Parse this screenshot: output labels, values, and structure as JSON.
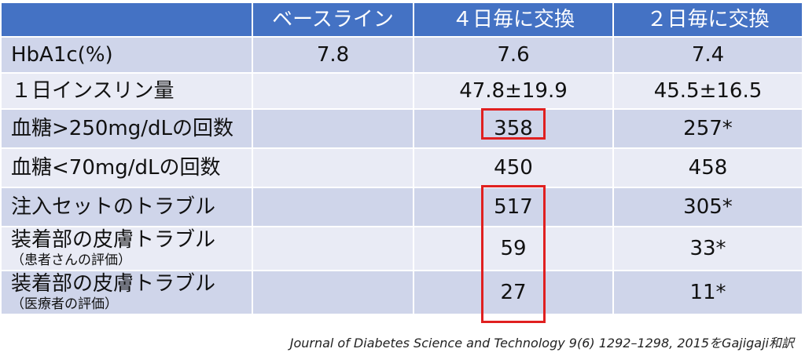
{
  "table": {
    "header": [
      "",
      "ベースライン",
      "４日毎に交換",
      "２日毎に交換"
    ],
    "rows": [
      {
        "label": "HbA1c(%)",
        "sub": "",
        "cells": [
          "7.8",
          "7.6",
          "7.4"
        ]
      },
      {
        "label": "１日インスリン量",
        "sub": "",
        "cells": [
          "",
          "47.8±19.9",
          "45.5±16.5"
        ]
      },
      {
        "label": "血糖>250mg/dLの回数",
        "sub": "",
        "cells": [
          "",
          "358",
          "257*"
        ]
      },
      {
        "label": "血糖<70mg/dLの回数",
        "sub": "",
        "cells": [
          "",
          "450",
          "458"
        ]
      },
      {
        "label": "注入セットのトラブル",
        "sub": "",
        "cells": [
          "",
          "517",
          "305*"
        ]
      },
      {
        "label": "装着部の皮膚トラブル",
        "sub": "（患者さんの評価）",
        "cells": [
          "",
          "59",
          "33*"
        ]
      },
      {
        "label": "装着部の皮膚トラブル",
        "sub": "（医療者の評価）",
        "cells": [
          "",
          "27",
          "11*"
        ]
      }
    ]
  },
  "credit": "Journal of Diabetes Science and Technology 9(6) 1292–1298, 2015をGajigaji和訳",
  "colors": {
    "header": "#4472c4",
    "row_dark": "#cfd5ea",
    "row_light": "#e9ebf5",
    "highlight": "#e02020"
  }
}
